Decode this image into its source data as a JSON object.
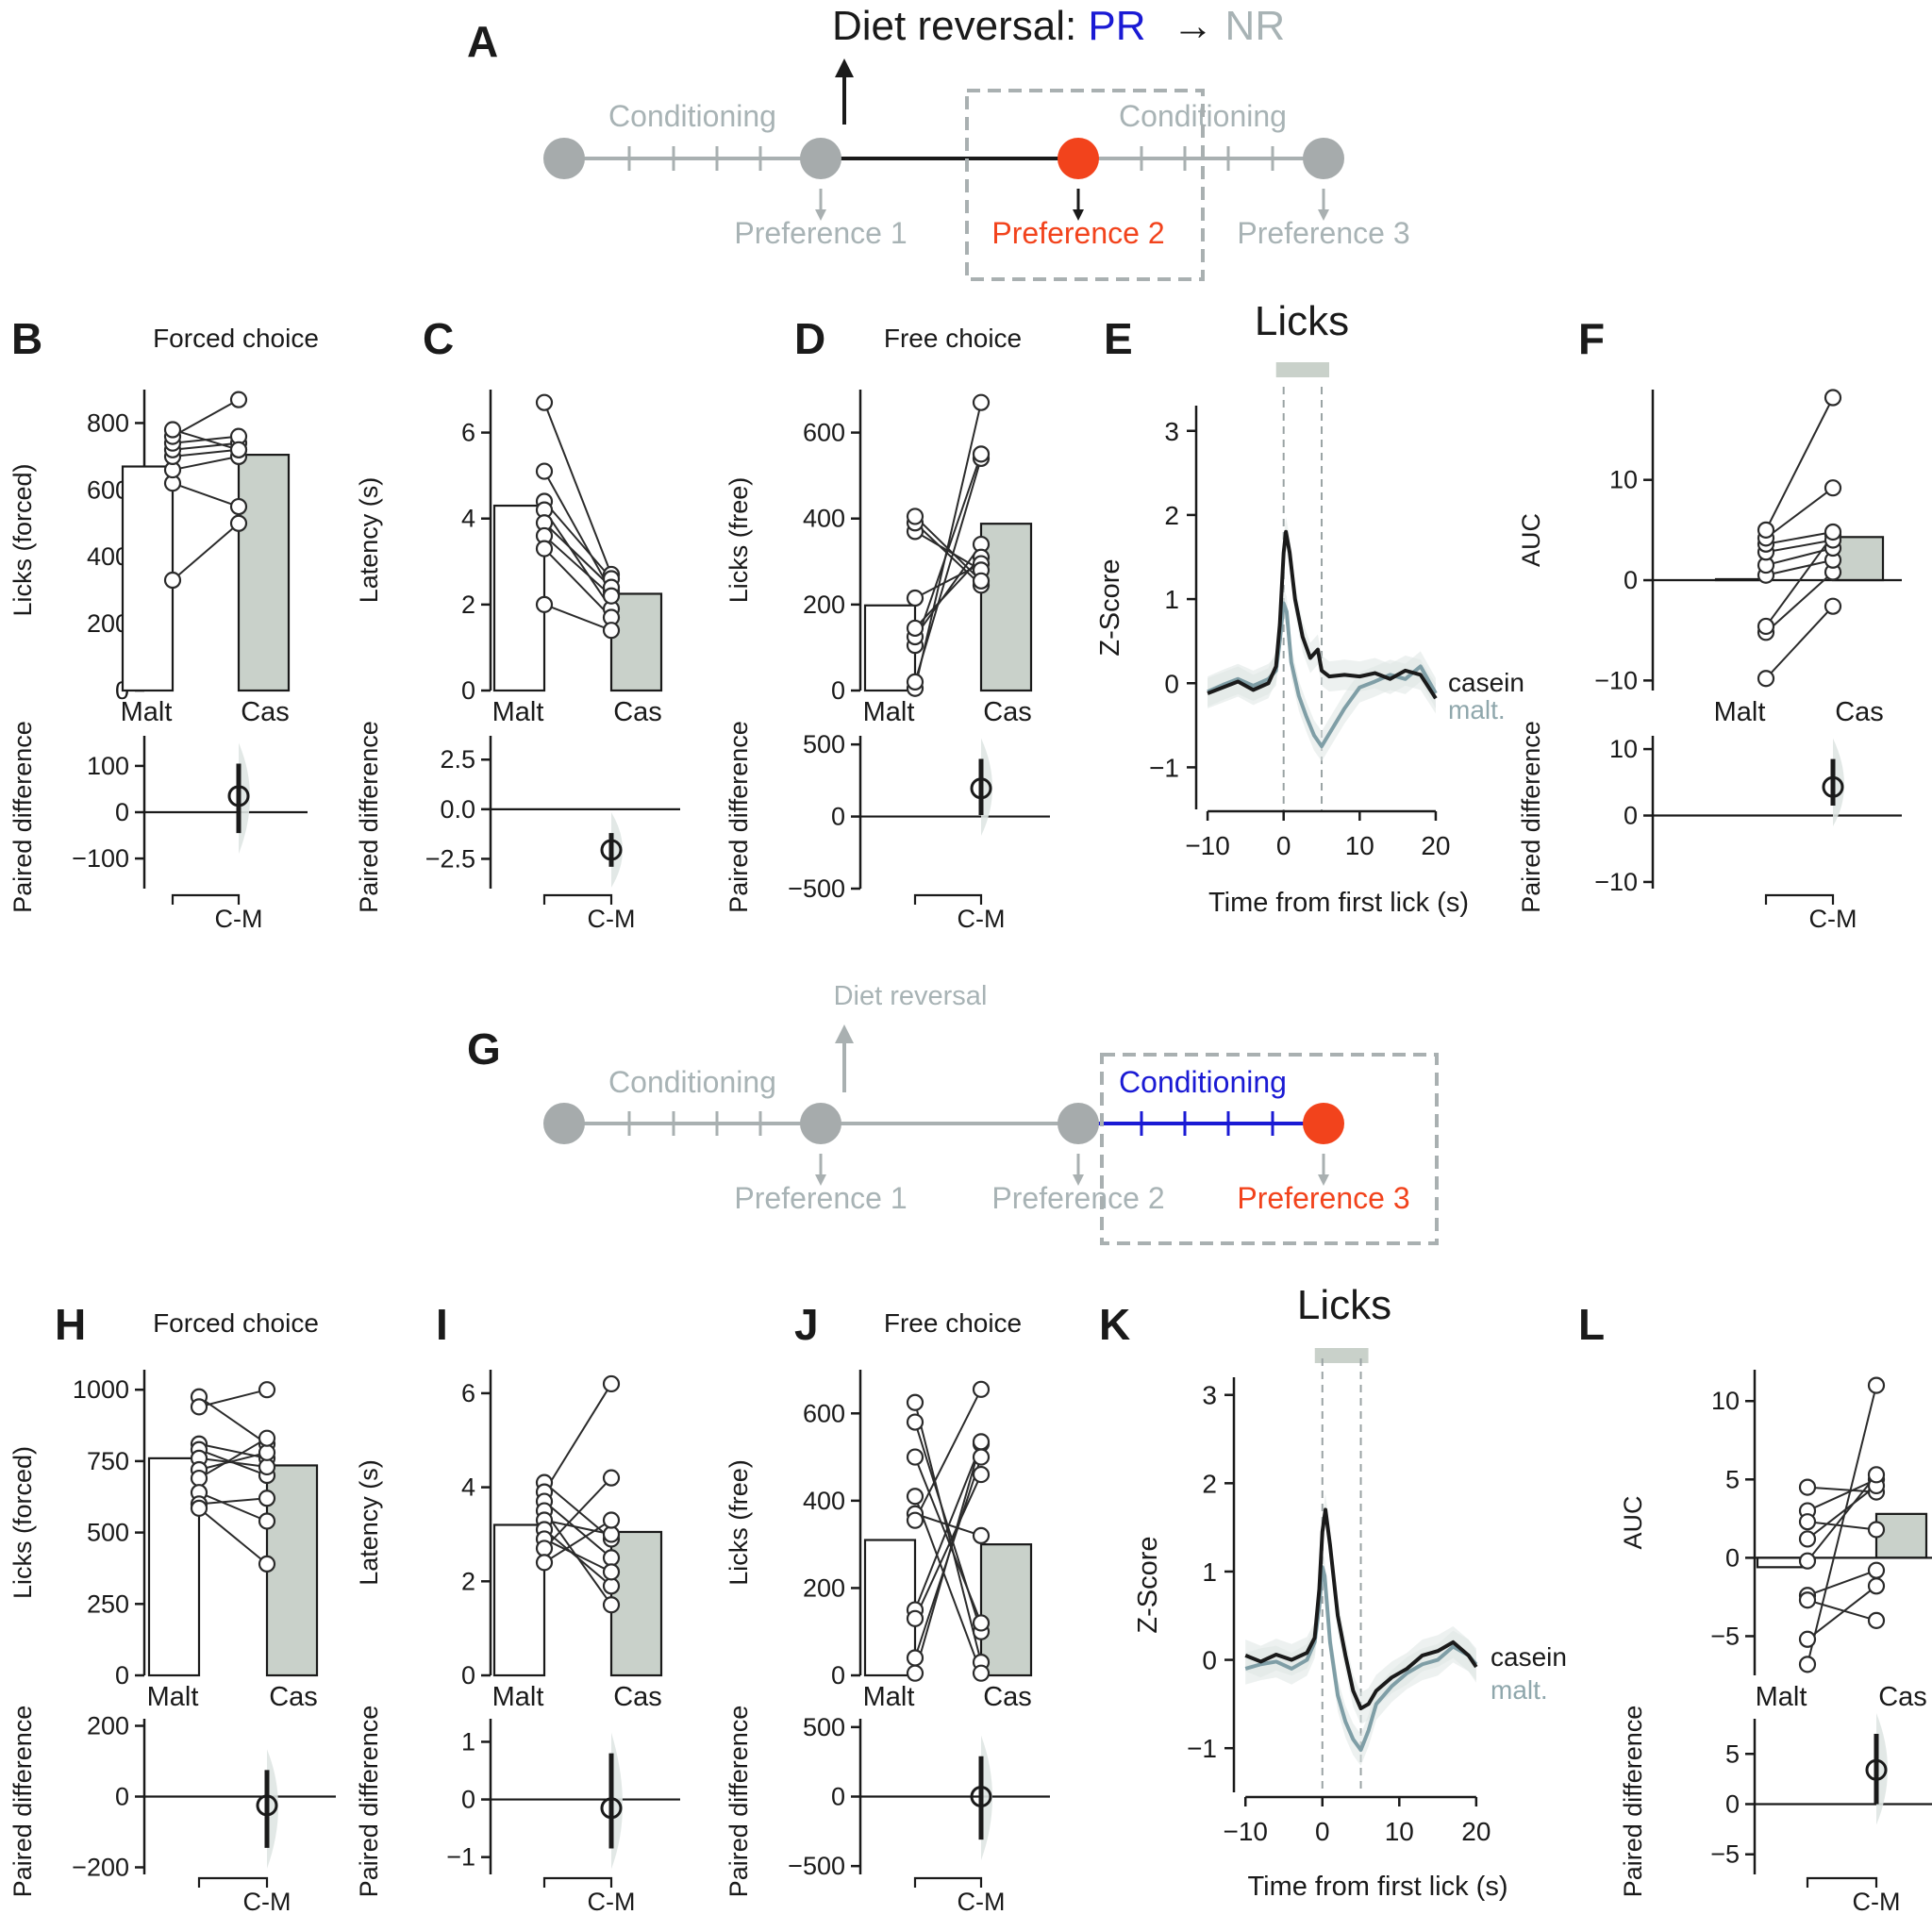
{
  "colors": {
    "malt_bar": "#ffffff",
    "cas_bar": "#c9d1ca",
    "grey_node": "#a6abac",
    "grey_text": "#a8b3b5",
    "grey_line": "#a9b0b1",
    "orange": "#f2431c",
    "blue": "#1a1ad4",
    "black": "#1a1a1a",
    "malt_trace": "#7f9ea6",
    "shade": "#dfe5e3",
    "cas_label": "#1a1a1a",
    "malt_label": "#8fa7ac"
  },
  "schematic_a": {
    "letter": "A",
    "title_prefix": "Diet reversal: ",
    "title_pr": "PR",
    "title_arrow": "→",
    "title_nr": "NR",
    "label_cond_left": "Conditioning",
    "label_cond_right": "Conditioning",
    "pref1": "Preference 1",
    "pref2": "Preference 2",
    "pref3": "Preference 3"
  },
  "schematic_g": {
    "letter": "G",
    "diet_reversal": "Diet reversal",
    "label_cond_left": "Conditioning",
    "label_cond_right": "Conditioning",
    "pref1": "Preference 1",
    "pref2": "Preference 2",
    "pref3": "Preference 3"
  },
  "chart_data": [
    {
      "panel": "B",
      "type": "bar",
      "title": "Forced choice",
      "ylabel": "Licks (forced)",
      "ylim": [
        0,
        900
      ],
      "yticks": [
        0,
        200,
        400,
        600,
        800
      ],
      "categories": [
        "Malt",
        "Cas"
      ],
      "bar_values": [
        670,
        705
      ],
      "pairs": [
        [
          330,
          500
        ],
        [
          620,
          550
        ],
        [
          660,
          700
        ],
        [
          700,
          720
        ],
        [
          720,
          740
        ],
        [
          740,
          760
        ],
        [
          760,
          870
        ],
        [
          780,
          720
        ]
      ],
      "diff": {
        "ylabel": "Paired difference",
        "ylim": [
          -165,
          165
        ],
        "yticks": [
          -100,
          0,
          100
        ],
        "mean": 35,
        "ci": [
          -45,
          105
        ],
        "xlabel": "C-M"
      }
    },
    {
      "panel": "C",
      "type": "bar",
      "title": "",
      "ylabel": "Latency (s)",
      "ylim": [
        0,
        7
      ],
      "yticks": [
        0,
        2,
        4,
        6
      ],
      "categories": [
        "Malt",
        "Cas"
      ],
      "bar_values": [
        4.3,
        2.25
      ],
      "pairs": [
        [
          6.7,
          2.7
        ],
        [
          5.1,
          2.3
        ],
        [
          4.4,
          2.6
        ],
        [
          4.2,
          1.9
        ],
        [
          3.9,
          2.4
        ],
        [
          3.6,
          2.2
        ],
        [
          3.3,
          1.7
        ],
        [
          2.0,
          1.4
        ]
      ],
      "diff": {
        "ylabel": "Paired difference",
        "ylim": [
          -4.0,
          3.7
        ],
        "yticks": [
          -2.5,
          0.0,
          2.5
        ],
        "tick_decimals": 1,
        "mean": -2.05,
        "ci": [
          -2.9,
          -1.2
        ],
        "xlabel": "C-M"
      }
    },
    {
      "panel": "D",
      "type": "bar",
      "title": "Free choice",
      "ylabel": "Licks (free)",
      "ylim": [
        0,
        700
      ],
      "yticks": [
        0,
        200,
        400,
        600
      ],
      "categories": [
        "Malt",
        "Cas"
      ],
      "bar_values": [
        198,
        388
      ],
      "pairs": [
        [
          5,
          670
        ],
        [
          20,
          540
        ],
        [
          105,
          550
        ],
        [
          125,
          340
        ],
        [
          145,
          310
        ],
        [
          215,
          295
        ],
        [
          370,
          280
        ],
        [
          390,
          245
        ],
        [
          405,
          255
        ]
      ],
      "diff": {
        "ylabel": "Paired difference",
        "ylim": [
          -500,
          560
        ],
        "yticks": [
          -500,
          0,
          500
        ],
        "mean": 195,
        "ci": [
          10,
          400
        ],
        "xlabel": "C-M"
      }
    },
    {
      "panel": "E",
      "type": "line",
      "title": "Licks",
      "ylabel": "Z-Score",
      "xlabel": "Time from first lick (s)",
      "xlim": [
        -11.5,
        21
      ],
      "ylim": [
        -1.5,
        3.3
      ],
      "xticks": [
        -10,
        0,
        10,
        20
      ],
      "yticks": [
        -1,
        0,
        1,
        2,
        3
      ],
      "lick_window": [
        0,
        5
      ],
      "series": [
        {
          "name": "casein",
          "points": [
            [
              -10,
              -0.12
            ],
            [
              -8,
              -0.05
            ],
            [
              -6,
              0.02
            ],
            [
              -4,
              -0.08
            ],
            [
              -2,
              0.0
            ],
            [
              -1,
              0.2
            ],
            [
              -0.5,
              0.7
            ],
            [
              0,
              1.55
            ],
            [
              0.3,
              1.8
            ],
            [
              0.8,
              1.55
            ],
            [
              1.5,
              1.0
            ],
            [
              2.5,
              0.55
            ],
            [
              3.5,
              0.3
            ],
            [
              4.5,
              0.4
            ],
            [
              5,
              0.15
            ],
            [
              6,
              0.08
            ],
            [
              8,
              0.1
            ],
            [
              10,
              0.08
            ],
            [
              12,
              0.12
            ],
            [
              14,
              0.05
            ],
            [
              16,
              0.15
            ],
            [
              18,
              0.1
            ],
            [
              20,
              -0.18
            ]
          ]
        },
        {
          "name": "malt.",
          "points": [
            [
              -10,
              -0.1
            ],
            [
              -8,
              -0.02
            ],
            [
              -6,
              0.05
            ],
            [
              -4,
              -0.03
            ],
            [
              -2,
              0.05
            ],
            [
              -1,
              0.15
            ],
            [
              -0.5,
              0.5
            ],
            [
              0,
              0.95
            ],
            [
              0.4,
              0.85
            ],
            [
              1,
              0.25
            ],
            [
              2,
              -0.15
            ],
            [
              3,
              -0.4
            ],
            [
              4,
              -0.62
            ],
            [
              5,
              -0.75
            ],
            [
              6,
              -0.6
            ],
            [
              8,
              -0.3
            ],
            [
              10,
              -0.05
            ],
            [
              12,
              0.02
            ],
            [
              14,
              0.1
            ],
            [
              16,
              0.05
            ],
            [
              18,
              0.2
            ],
            [
              20,
              -0.12
            ]
          ]
        }
      ]
    },
    {
      "panel": "F",
      "type": "bar",
      "title": "",
      "ylabel": "AUC",
      "ylim": [
        -11,
        19
      ],
      "yticks": [
        -10,
        0,
        10
      ],
      "categories": [
        "Malt",
        "Cas"
      ],
      "bar_values": [
        0.1,
        4.3
      ],
      "pairs": [
        [
          -9.8,
          -2.6
        ],
        [
          -5.2,
          0.8
        ],
        [
          -4.6,
          4.5
        ],
        [
          0.5,
          2.0
        ],
        [
          1.5,
          3.2
        ],
        [
          2.8,
          4.0
        ],
        [
          3.6,
          4.8
        ],
        [
          4.2,
          9.2
        ],
        [
          5.0,
          18.2
        ]
      ],
      "diff": {
        "ylabel": "Paired difference",
        "ylim": [
          -11,
          12
        ],
        "yticks": [
          -10,
          0,
          10
        ],
        "mean": 4.3,
        "ci": [
          1.5,
          8.5
        ],
        "xlabel": "C-M"
      }
    },
    {
      "panel": "H",
      "type": "bar",
      "title": "Forced choice",
      "ylabel": "Licks (forced)",
      "ylim": [
        0,
        1070
      ],
      "yticks": [
        0,
        250,
        500,
        750,
        1000
      ],
      "categories": [
        "Malt",
        "Cas"
      ],
      "bar_values": [
        760,
        735
      ],
      "pairs": [
        [
          975,
          810
        ],
        [
          940,
          1000
        ],
        [
          810,
          760
        ],
        [
          790,
          700
        ],
        [
          760,
          730
        ],
        [
          720,
          780
        ],
        [
          690,
          830
        ],
        [
          640,
          540
        ],
        [
          600,
          620
        ],
        [
          585,
          390
        ]
      ],
      "diff": {
        "ylabel": "Paired difference",
        "ylim": [
          -220,
          220
        ],
        "yticks": [
          -200,
          0,
          200
        ],
        "mean": -25,
        "ci": [
          -145,
          75
        ],
        "xlabel": "C-M"
      }
    },
    {
      "panel": "I",
      "type": "bar",
      "title": "",
      "ylabel": "Latency (s)",
      "ylim": [
        0,
        6.5
      ],
      "yticks": [
        0,
        2,
        4,
        6
      ],
      "categories": [
        "Malt",
        "Cas"
      ],
      "bar_values": [
        3.2,
        3.05
      ],
      "pairs": [
        [
          4.1,
          2.9
        ],
        [
          3.9,
          6.2
        ],
        [
          3.7,
          2.5
        ],
        [
          3.5,
          1.5
        ],
        [
          3.3,
          3.0
        ],
        [
          3.1,
          1.9
        ],
        [
          2.9,
          2.2
        ],
        [
          2.7,
          4.2
        ],
        [
          2.4,
          3.3
        ]
      ],
      "diff": {
        "ylabel": "Paired difference",
        "ylim": [
          -1.3,
          1.4
        ],
        "yticks": [
          -1,
          0,
          1
        ],
        "mean": -0.15,
        "ci": [
          -0.85,
          0.8
        ],
        "xlabel": "C-M"
      }
    },
    {
      "panel": "J",
      "type": "bar",
      "title": "Free choice",
      "ylabel": "Licks (free)",
      "ylim": [
        0,
        700
      ],
      "yticks": [
        0,
        200,
        400,
        600
      ],
      "categories": [
        "Malt",
        "Cas"
      ],
      "bar_values": [
        310,
        300
      ],
      "pairs": [
        [
          625,
          30
        ],
        [
          580,
          100
        ],
        [
          500,
          120
        ],
        [
          410,
          5
        ],
        [
          370,
          320
        ],
        [
          150,
          530
        ],
        [
          130,
          460
        ],
        [
          40,
          500
        ],
        [
          5,
          535
        ],
        [
          355,
          655
        ]
      ],
      "diff": {
        "ylabel": "Paired difference",
        "ylim": [
          -560,
          560
        ],
        "yticks": [
          -500,
          0,
          500
        ],
        "mean": 0,
        "ci": [
          -310,
          290
        ],
        "xlabel": "C-M"
      }
    },
    {
      "panel": "K",
      "type": "line",
      "title": "Licks",
      "ylabel": "Z-Score",
      "xlabel": "Time from first lick (s)",
      "xlim": [
        -11.5,
        21
      ],
      "ylim": [
        -1.5,
        3.2
      ],
      "xticks": [
        -10,
        0,
        10,
        20
      ],
      "yticks": [
        -1,
        0,
        1,
        2,
        3
      ],
      "lick_window": [
        0,
        5
      ],
      "series": [
        {
          "name": "casein",
          "points": [
            [
              -10,
              0.05
            ],
            [
              -8,
              -0.02
            ],
            [
              -6,
              0.06
            ],
            [
              -4,
              0.0
            ],
            [
              -2,
              0.08
            ],
            [
              -1,
              0.25
            ],
            [
              -0.4,
              0.8
            ],
            [
              0,
              1.45
            ],
            [
              0.4,
              1.7
            ],
            [
              1,
              1.3
            ],
            [
              2,
              0.5
            ],
            [
              3,
              0.05
            ],
            [
              4,
              -0.35
            ],
            [
              5,
              -0.55
            ],
            [
              6,
              -0.5
            ],
            [
              7,
              -0.35
            ],
            [
              9,
              -0.2
            ],
            [
              11,
              -0.1
            ],
            [
              13,
              0.05
            ],
            [
              15,
              0.1
            ],
            [
              17,
              0.2
            ],
            [
              19,
              0.05
            ],
            [
              20,
              -0.08
            ]
          ]
        },
        {
          "name": "malt.",
          "points": [
            [
              -10,
              -0.1
            ],
            [
              -8,
              -0.05
            ],
            [
              -6,
              -0.02
            ],
            [
              -4,
              -0.1
            ],
            [
              -2,
              0.0
            ],
            [
              -1,
              0.2
            ],
            [
              -0.4,
              0.6
            ],
            [
              0,
              1.05
            ],
            [
              0.3,
              0.95
            ],
            [
              1,
              0.2
            ],
            [
              2,
              -0.4
            ],
            [
              3,
              -0.7
            ],
            [
              4,
              -0.9
            ],
            [
              5,
              -1.02
            ],
            [
              6,
              -0.8
            ],
            [
              7,
              -0.5
            ],
            [
              9,
              -0.3
            ],
            [
              11,
              -0.15
            ],
            [
              13,
              -0.05
            ],
            [
              15,
              0.0
            ],
            [
              17,
              0.15
            ],
            [
              19,
              0.05
            ],
            [
              20,
              -0.05
            ]
          ]
        }
      ]
    },
    {
      "panel": "L",
      "type": "bar",
      "title": "",
      "ylabel": "AUC",
      "ylim": [
        -7.5,
        12
      ],
      "yticks": [
        -5,
        0,
        5,
        10
      ],
      "categories": [
        "Malt",
        "Cas"
      ],
      "bar_values": [
        -0.6,
        2.8
      ],
      "pairs": [
        [
          4.5,
          4.2
        ],
        [
          3.0,
          5.0
        ],
        [
          2.3,
          1.8
        ],
        [
          1.2,
          4.6
        ],
        [
          -0.2,
          5.3
        ],
        [
          -2.4,
          -0.8
        ],
        [
          -2.7,
          -4.0
        ],
        [
          -5.2,
          -1.8
        ],
        [
          -6.8,
          11.0
        ]
      ],
      "diff": {
        "ylabel": "Paired difference",
        "ylim": [
          -7,
          8.5
        ],
        "yticks": [
          -5,
          0,
          5
        ],
        "mean": 3.4,
        "ci": [
          0.0,
          7.0
        ],
        "xlabel": "C-M"
      }
    }
  ]
}
